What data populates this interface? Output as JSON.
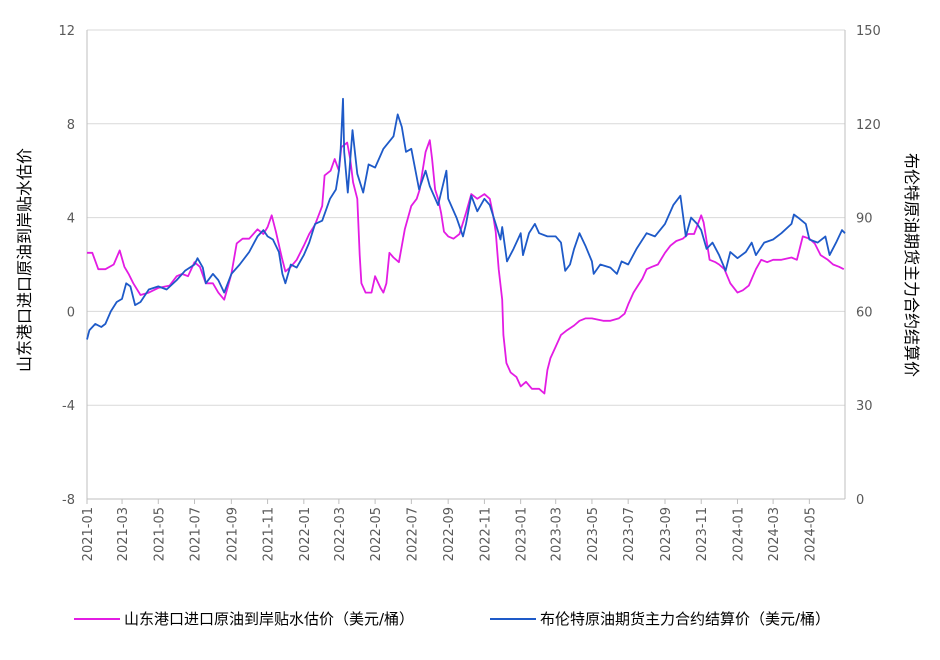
{
  "chart_data": {
    "type": "line",
    "y_left_label": "山东港口进口原油到岸贴水估价",
    "y_right_label": "布伦特原油期货主力合约结算价",
    "y_left_ticks": [
      "12",
      "8",
      "4",
      "0",
      "-4",
      "-8"
    ],
    "y_right_ticks": [
      "150",
      "120",
      "90",
      "60",
      "30",
      "0"
    ],
    "ylim_left": [
      -8,
      12
    ],
    "ylim_right": [
      0,
      150
    ],
    "x_ticks": [
      "2021-01",
      "2021-03",
      "2021-05",
      "2021-07",
      "2021-09",
      "2021-11",
      "2022-01",
      "2022-03",
      "2022-05",
      "2022-07",
      "2022-09",
      "2022-11",
      "2023-01",
      "2023-03",
      "2023-05",
      "2023-07",
      "2023-09",
      "2023-11",
      "2024-01",
      "2024-03",
      "2024-05"
    ],
    "grid": "horizontal",
    "legend_position": "bottom",
    "series": [
      {
        "name": "山东港口进口原油到岸贴水估价（美元/桶）",
        "axis": "left",
        "color": "#E31CE3",
        "points": [
          [
            "2021-01-01",
            2.5
          ],
          [
            "2021-01-10",
            2.5
          ],
          [
            "2021-01-20",
            1.8
          ],
          [
            "2021-02-01",
            1.8
          ],
          [
            "2021-02-15",
            2.0
          ],
          [
            "2021-02-25",
            2.6
          ],
          [
            "2021-03-05",
            1.9
          ],
          [
            "2021-03-12",
            1.6
          ],
          [
            "2021-03-20",
            1.2
          ],
          [
            "2021-04-01",
            0.7
          ],
          [
            "2021-04-15",
            0.8
          ],
          [
            "2021-05-01",
            1.0
          ],
          [
            "2021-05-20",
            1.1
          ],
          [
            "2021-06-01",
            1.5
          ],
          [
            "2021-06-10",
            1.6
          ],
          [
            "2021-06-20",
            1.5
          ],
          [
            "2021-07-01",
            2.1
          ],
          [
            "2021-07-10",
            1.9
          ],
          [
            "2021-07-20",
            1.2
          ],
          [
            "2021-08-01",
            1.2
          ],
          [
            "2021-08-10",
            0.8
          ],
          [
            "2021-08-20",
            0.5
          ],
          [
            "2021-09-01",
            1.6
          ],
          [
            "2021-09-10",
            2.9
          ],
          [
            "2021-09-20",
            3.1
          ],
          [
            "2021-10-01",
            3.1
          ],
          [
            "2021-10-15",
            3.5
          ],
          [
            "2021-10-25",
            3.3
          ],
          [
            "2021-11-01",
            3.6
          ],
          [
            "2021-11-08",
            4.1
          ],
          [
            "2021-11-15",
            3.4
          ],
          [
            "2021-11-25",
            2.3
          ],
          [
            "2021-12-01",
            1.7
          ],
          [
            "2021-12-10",
            1.9
          ],
          [
            "2021-12-20",
            2.2
          ],
          [
            "2022-01-01",
            2.8
          ],
          [
            "2022-01-10",
            3.3
          ],
          [
            "2022-01-20",
            3.7
          ],
          [
            "2022-02-01",
            4.5
          ],
          [
            "2022-02-05",
            5.8
          ],
          [
            "2022-02-15",
            6.0
          ],
          [
            "2022-02-22",
            6.5
          ],
          [
            "2022-03-01",
            6.0
          ],
          [
            "2022-03-05",
            7.0
          ],
          [
            "2022-03-15",
            7.2
          ],
          [
            "2022-03-20",
            6.5
          ],
          [
            "2022-03-25",
            5.5
          ],
          [
            "2022-04-01",
            4.8
          ],
          [
            "2022-04-05",
            2.4
          ],
          [
            "2022-04-08",
            1.2
          ],
          [
            "2022-04-15",
            0.8
          ],
          [
            "2022-04-25",
            0.8
          ],
          [
            "2022-05-01",
            1.5
          ],
          [
            "2022-05-10",
            1.0
          ],
          [
            "2022-05-15",
            0.8
          ],
          [
            "2022-05-20",
            1.2
          ],
          [
            "2022-05-25",
            2.5
          ],
          [
            "2022-06-01",
            2.3
          ],
          [
            "2022-06-10",
            2.1
          ],
          [
            "2022-06-20",
            3.5
          ],
          [
            "2022-07-01",
            4.5
          ],
          [
            "2022-07-10",
            4.8
          ],
          [
            "2022-07-15",
            5.2
          ],
          [
            "2022-07-20",
            6.0
          ],
          [
            "2022-07-25",
            6.8
          ],
          [
            "2022-08-01",
            7.3
          ],
          [
            "2022-08-05",
            6.5
          ],
          [
            "2022-08-10",
            5.2
          ],
          [
            "2022-08-15",
            4.8
          ],
          [
            "2022-08-20",
            4.2
          ],
          [
            "2022-08-25",
            3.4
          ],
          [
            "2022-09-01",
            3.2
          ],
          [
            "2022-09-10",
            3.1
          ],
          [
            "2022-09-20",
            3.3
          ],
          [
            "2022-10-01",
            4.2
          ],
          [
            "2022-10-10",
            5.0
          ],
          [
            "2022-10-20",
            4.8
          ],
          [
            "2022-11-01",
            5.0
          ],
          [
            "2022-11-10",
            4.8
          ],
          [
            "2022-11-15",
            4.2
          ],
          [
            "2022-11-20",
            3.4
          ],
          [
            "2022-11-25",
            1.8
          ],
          [
            "2022-12-01",
            0.5
          ],
          [
            "2022-12-03",
            -1.0
          ],
          [
            "2022-12-08",
            -2.2
          ],
          [
            "2022-12-15",
            -2.6
          ],
          [
            "2022-12-25",
            -2.8
          ],
          [
            "2023-01-01",
            -3.2
          ],
          [
            "2023-01-10",
            -3.0
          ],
          [
            "2023-01-20",
            -3.3
          ],
          [
            "2023-02-01",
            -3.3
          ],
          [
            "2023-02-10",
            -3.5
          ],
          [
            "2023-02-15",
            -2.5
          ],
          [
            "2023-02-20",
            -2.0
          ],
          [
            "2023-03-01",
            -1.5
          ],
          [
            "2023-03-10",
            -1.0
          ],
          [
            "2023-03-20",
            -0.8
          ],
          [
            "2023-04-01",
            -0.6
          ],
          [
            "2023-04-10",
            -0.4
          ],
          [
            "2023-04-20",
            -0.3
          ],
          [
            "2023-05-01",
            -0.3
          ],
          [
            "2023-05-20",
            -0.4
          ],
          [
            "2023-06-01",
            -0.4
          ],
          [
            "2023-06-15",
            -0.3
          ],
          [
            "2023-06-25",
            -0.1
          ],
          [
            "2023-07-01",
            0.3
          ],
          [
            "2023-07-10",
            0.8
          ],
          [
            "2023-07-15",
            1.0
          ],
          [
            "2023-07-25",
            1.4
          ],
          [
            "2023-08-01",
            1.8
          ],
          [
            "2023-08-10",
            1.9
          ],
          [
            "2023-08-20",
            2.0
          ],
          [
            "2023-09-01",
            2.5
          ],
          [
            "2023-09-10",
            2.8
          ],
          [
            "2023-09-20",
            3.0
          ],
          [
            "2023-10-01",
            3.1
          ],
          [
            "2023-10-10",
            3.3
          ],
          [
            "2023-10-20",
            3.3
          ],
          [
            "2023-11-01",
            4.1
          ],
          [
            "2023-11-05",
            3.8
          ],
          [
            "2023-11-10",
            3.0
          ],
          [
            "2023-11-15",
            2.2
          ],
          [
            "2023-11-25",
            2.1
          ],
          [
            "2023-12-01",
            2.0
          ],
          [
            "2023-12-10",
            1.8
          ],
          [
            "2023-12-20",
            1.2
          ],
          [
            "2024-01-01",
            0.8
          ],
          [
            "2024-01-10",
            0.9
          ],
          [
            "2024-01-20",
            1.1
          ],
          [
            "2024-02-01",
            1.8
          ],
          [
            "2024-02-10",
            2.2
          ],
          [
            "2024-02-20",
            2.1
          ],
          [
            "2024-03-01",
            2.2
          ],
          [
            "2024-03-15",
            2.2
          ],
          [
            "2024-04-01",
            2.3
          ],
          [
            "2024-04-10",
            2.2
          ],
          [
            "2024-04-20",
            3.2
          ],
          [
            "2024-05-01",
            3.1
          ],
          [
            "2024-05-10",
            2.9
          ],
          [
            "2024-05-20",
            2.4
          ],
          [
            "2024-06-01",
            2.2
          ],
          [
            "2024-06-10",
            2.0
          ],
          [
            "2024-06-20",
            1.9
          ],
          [
            "2024-06-28",
            1.8
          ]
        ]
      },
      {
        "name": "布伦特原油期货主力合约结算价（美元/桶）",
        "axis": "right",
        "color": "#1E5AC8",
        "points": [
          [
            "2021-01-01",
            51
          ],
          [
            "2021-01-05",
            54
          ],
          [
            "2021-01-15",
            56
          ],
          [
            "2021-01-25",
            55
          ],
          [
            "2021-02-01",
            56
          ],
          [
            "2021-02-10",
            60
          ],
          [
            "2021-02-20",
            63
          ],
          [
            "2021-03-01",
            64
          ],
          [
            "2021-03-08",
            69
          ],
          [
            "2021-03-15",
            68
          ],
          [
            "2021-03-23",
            62
          ],
          [
            "2021-04-01",
            63
          ],
          [
            "2021-04-15",
            67
          ],
          [
            "2021-05-01",
            68
          ],
          [
            "2021-05-15",
            67
          ],
          [
            "2021-06-01",
            70
          ],
          [
            "2021-06-15",
            73
          ],
          [
            "2021-07-01",
            75
          ],
          [
            "2021-07-06",
            77
          ],
          [
            "2021-07-15",
            74
          ],
          [
            "2021-07-20",
            69
          ],
          [
            "2021-08-01",
            72
          ],
          [
            "2021-08-10",
            70
          ],
          [
            "2021-08-20",
            66
          ],
          [
            "2021-09-01",
            72
          ],
          [
            "2021-09-15",
            75
          ],
          [
            "2021-10-01",
            79
          ],
          [
            "2021-10-15",
            84
          ],
          [
            "2021-10-25",
            86
          ],
          [
            "2021-11-01",
            84
          ],
          [
            "2021-11-10",
            83
          ],
          [
            "2021-11-20",
            79
          ],
          [
            "2021-11-26",
            72
          ],
          [
            "2021-12-01",
            69
          ],
          [
            "2021-12-10",
            75
          ],
          [
            "2021-12-20",
            74
          ],
          [
            "2022-01-01",
            78
          ],
          [
            "2022-01-10",
            82
          ],
          [
            "2022-01-20",
            88
          ],
          [
            "2022-02-01",
            89
          ],
          [
            "2022-02-14",
            96
          ],
          [
            "2022-02-24",
            99
          ],
          [
            "2022-03-01",
            105
          ],
          [
            "2022-03-04",
            112
          ],
          [
            "2022-03-08",
            128
          ],
          [
            "2022-03-10",
            111
          ],
          [
            "2022-03-16",
            98
          ],
          [
            "2022-03-24",
            118
          ],
          [
            "2022-04-01",
            104
          ],
          [
            "2022-04-11",
            98
          ],
          [
            "2022-04-20",
            107
          ],
          [
            "2022-05-01",
            106
          ],
          [
            "2022-05-15",
            112
          ],
          [
            "2022-06-01",
            116
          ],
          [
            "2022-06-08",
            123
          ],
          [
            "2022-06-15",
            119
          ],
          [
            "2022-06-22",
            111
          ],
          [
            "2022-07-01",
            112
          ],
          [
            "2022-07-14",
            99
          ],
          [
            "2022-07-25",
            105
          ],
          [
            "2022-08-01",
            100
          ],
          [
            "2022-08-15",
            94
          ],
          [
            "2022-08-29",
            105
          ],
          [
            "2022-09-01",
            96
          ],
          [
            "2022-09-15",
            90
          ],
          [
            "2022-09-26",
            84
          ],
          [
            "2022-10-01",
            88
          ],
          [
            "2022-10-10",
            97
          ],
          [
            "2022-10-20",
            92
          ],
          [
            "2022-11-01",
            96
          ],
          [
            "2022-11-10",
            94
          ],
          [
            "2022-11-20",
            88
          ],
          [
            "2022-11-28",
            83
          ],
          [
            "2022-12-01",
            87
          ],
          [
            "2022-12-09",
            76
          ],
          [
            "2022-12-20",
            80
          ],
          [
            "2023-01-01",
            85
          ],
          [
            "2023-01-05",
            78
          ],
          [
            "2023-01-15",
            85
          ],
          [
            "2023-01-25",
            88
          ],
          [
            "2023-02-01",
            85
          ],
          [
            "2023-02-15",
            84
          ],
          [
            "2023-03-01",
            84
          ],
          [
            "2023-03-10",
            82
          ],
          [
            "2023-03-17",
            73
          ],
          [
            "2023-03-25",
            75
          ],
          [
            "2023-04-01",
            80
          ],
          [
            "2023-04-10",
            85
          ],
          [
            "2023-04-20",
            81
          ],
          [
            "2023-05-01",
            76
          ],
          [
            "2023-05-04",
            72
          ],
          [
            "2023-05-15",
            75
          ],
          [
            "2023-06-01",
            74
          ],
          [
            "2023-06-12",
            72
          ],
          [
            "2023-06-20",
            76
          ],
          [
            "2023-07-01",
            75
          ],
          [
            "2023-07-15",
            80
          ],
          [
            "2023-08-01",
            85
          ],
          [
            "2023-08-15",
            84
          ],
          [
            "2023-09-01",
            88
          ],
          [
            "2023-09-15",
            94
          ],
          [
            "2023-09-27",
            97
          ],
          [
            "2023-10-06",
            84
          ],
          [
            "2023-10-15",
            90
          ],
          [
            "2023-10-25",
            88
          ],
          [
            "2023-11-01",
            86
          ],
          [
            "2023-11-10",
            80
          ],
          [
            "2023-11-20",
            82
          ],
          [
            "2023-12-01",
            78
          ],
          [
            "2023-12-12",
            73
          ],
          [
            "2023-12-20",
            79
          ],
          [
            "2024-01-01",
            77
          ],
          [
            "2024-01-15",
            79
          ],
          [
            "2024-01-25",
            82
          ],
          [
            "2024-02-01",
            78
          ],
          [
            "2024-02-15",
            82
          ],
          [
            "2024-03-01",
            83
          ],
          [
            "2024-03-15",
            85
          ],
          [
            "2024-04-01",
            88
          ],
          [
            "2024-04-05",
            91
          ],
          [
            "2024-04-12",
            90
          ],
          [
            "2024-04-25",
            88
          ],
          [
            "2024-05-01",
            83
          ],
          [
            "2024-05-15",
            82
          ],
          [
            "2024-05-28",
            84
          ],
          [
            "2024-06-04",
            78
          ],
          [
            "2024-06-15",
            82
          ],
          [
            "2024-06-25",
            86
          ],
          [
            "2024-06-30",
            85
          ]
        ]
      }
    ]
  }
}
